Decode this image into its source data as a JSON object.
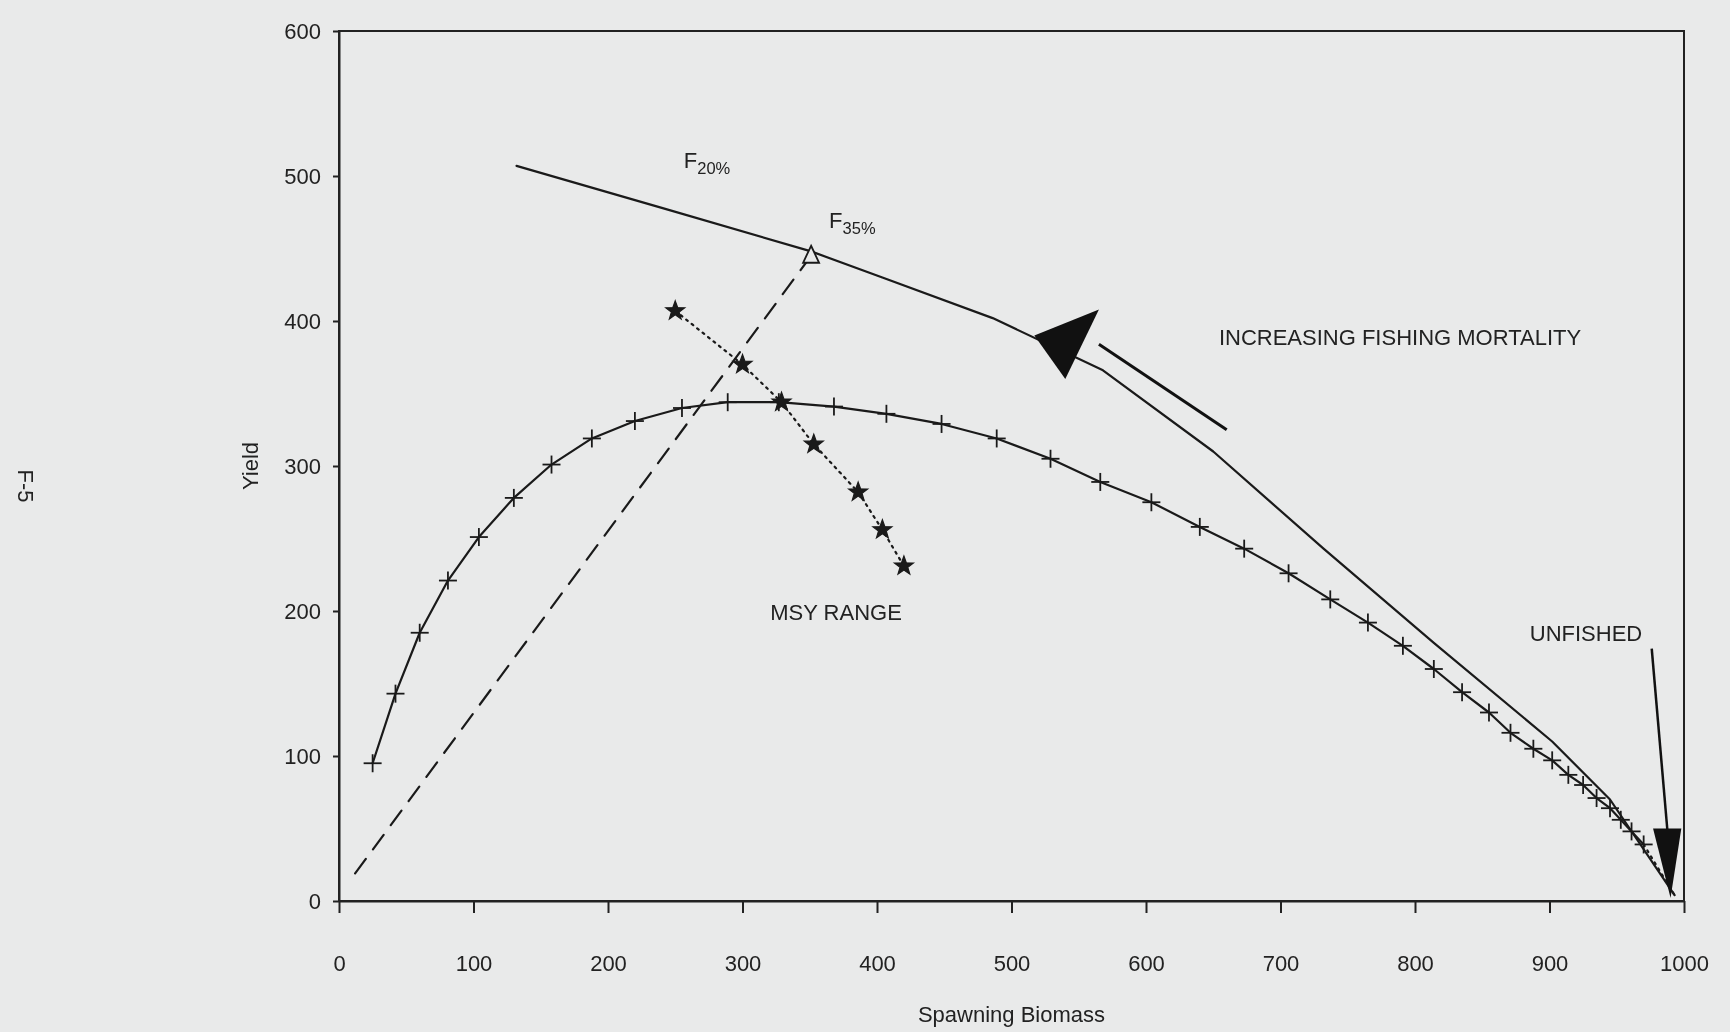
{
  "chart_data": {
    "type": "line",
    "xlabel": "Spawning Biomass",
    "ylabel": "Yield",
    "xlim": [
      0,
      1000
    ],
    "ylim": [
      0,
      600
    ],
    "xticks": [
      0,
      100,
      200,
      300,
      400,
      500,
      600,
      700,
      800,
      900,
      1000
    ],
    "yticks": [
      0,
      100,
      200,
      300,
      400,
      500,
      600
    ],
    "grid": false,
    "legend": false,
    "series": [
      {
        "name": "F$_{20%}$",
        "color": "#1a1a1a",
        "line_style": "solid",
        "marker": "none",
        "x": [
          132,
          240,
          351,
          404,
          486,
          568,
          650,
          732,
          814,
          902,
          945,
          993
        ],
        "values": [
          507,
          478,
          448,
          430,
          402,
          366,
          310,
          243,
          178,
          110,
          70,
          4
        ]
      },
      {
        "color": "#1a1a1a",
        "line_style": "solid",
        "marker": "cross",
        "x": [
          25,
          42,
          60,
          81,
          104,
          130,
          158,
          188,
          220,
          255,
          289,
          327,
          368,
          407,
          448,
          489,
          529,
          566,
          604,
          640,
          673,
          706,
          737,
          765,
          791,
          814,
          835,
          855,
          871,
          888,
          902,
          914,
          925,
          935,
          945,
          953,
          961,
          970
        ],
        "values": [
          95,
          143,
          185,
          221,
          251,
          278,
          301,
          319,
          331,
          340,
          344,
          344,
          341,
          336,
          329,
          319,
          305,
          289,
          275,
          258,
          243,
          226,
          208,
          192,
          176,
          160,
          144,
          130,
          116,
          105,
          97,
          87,
          80,
          71,
          64,
          56,
          48,
          39
        ]
      },
      {
        "color": "#1a1a1a",
        "line_style": "dotted",
        "marker": "none",
        "x": [
          970,
          993
        ],
        "values": [
          39,
          4
        ]
      },
      {
        "name": "F$_{35%}$",
        "color": "#1a1a1a",
        "line_style": "dashed",
        "marker": "none",
        "x": [
          12,
          351
        ],
        "values": [
          19,
          445
        ]
      },
      {
        "type": "scatter",
        "color": "#1a1a1a",
        "marker": "triangle",
        "x": [
          351
        ],
        "values": [
          445
        ]
      },
      {
        "color": "#1a1a1a",
        "line_style": "dotted",
        "marker": "star",
        "x": [
          250,
          300,
          329,
          353,
          386,
          404,
          420
        ],
        "values": [
          407,
          370,
          344,
          315,
          282,
          256,
          231
        ]
      }
    ],
    "annotations": [
      "INCREASING FISHING MORTALITY",
      "MSY RANGE",
      "UNFISHED",
      "F-5"
    ]
  }
}
